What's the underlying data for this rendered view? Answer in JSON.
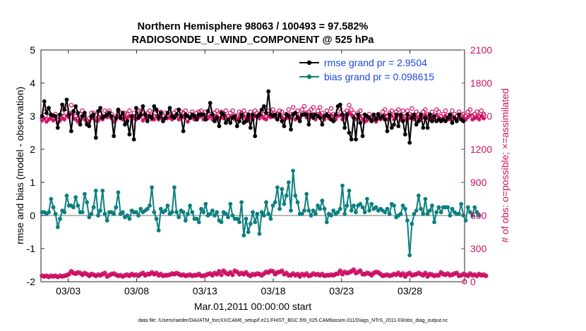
{
  "chart_data": {
    "type": "line",
    "title": "Northern Hemisphere 98063 / 100493 = 97.582%",
    "subtitle": "RADIOSONDE_U_WIND_COMPONENT @ 525 hPa",
    "xlabel": "Mar.01,2011 00:00:00 start",
    "ylabel_left": "rmse and bias (model - observation)",
    "ylabel_right": "# of obs: o=possible; ×=assimilated",
    "x_ticks": [
      "03/03",
      "03/08",
      "03/13",
      "03/18",
      "03/23",
      "03/28"
    ],
    "x_tick_days": [
      3,
      8,
      13,
      18,
      23,
      28
    ],
    "xlim_days": [
      1,
      32
    ],
    "ylim_left": [
      -2,
      5
    ],
    "ylim_right": [
      0,
      2100
    ],
    "y_ticks_left": [
      "-2",
      "-1",
      "0",
      "1",
      "2",
      "3",
      "4",
      "5"
    ],
    "y_ticks_right": [
      "0",
      "300",
      "600",
      "900",
      "1200",
      "1500",
      "1800",
      "2100"
    ],
    "colors": {
      "rmse": "#000000",
      "bias": "#0b7f7f",
      "obs": "#cc1164",
      "legend_text": "#1a46e6",
      "zero_line": "#a0a0a0"
    },
    "legend": [
      "rmse grand pr = 2.9504",
      "bias grand pr = 0.098615"
    ],
    "footnote": "data file: /Users/raeder/DAI/ATM_forcXX/CAM6_setup/f.e21.FHIST_BGC.f09_025.CAM6assim.011/Diags_NTrS_2011-03/obs_diag_output.nc",
    "rmse": [
      3.0,
      3.45,
      3.1,
      3.25,
      3.05,
      3.02,
      3.0,
      2.65,
      3.05,
      3.35,
      3.2,
      3.5,
      3.05,
      2.55,
      3.15,
      3.3,
      3.1,
      2.75,
      3.0,
      3.1,
      2.75,
      2.7,
      3.0,
      3.05,
      2.35,
      3.15,
      3.25,
      2.95,
      3.0,
      3.05,
      3.1,
      3.0,
      2.4,
      2.95,
      3.2,
      2.95,
      3.1,
      2.75,
      2.85,
      2.45,
      3.0,
      2.3,
      3.25,
      2.95,
      3.05,
      3.3,
      3.05,
      2.85,
      3.0,
      2.95,
      3.3,
      3.2,
      2.95,
      3.1,
      2.85,
      2.95,
      3.1,
      3.25,
      3.0,
      2.95,
      3.05,
      3.2,
      3.0,
      2.55,
      3.05,
      3.0,
      2.95,
      3.05,
      3.0,
      2.9,
      3.05,
      3.05,
      3.05,
      2.9,
      3.15,
      3.4,
      3.05,
      2.85,
      2.95,
      2.7,
      3.1,
      3.05,
      2.8,
      2.9,
      2.8,
      2.95,
      3.0,
      2.7,
      2.85,
      3.05,
      2.8,
      2.85,
      3.05,
      2.65,
      3.05,
      2.4,
      3.0,
      3.05,
      3.2,
      3.3,
      3.1,
      3.75,
      3.05,
      3.0,
      3.05,
      2.9,
      3.05,
      2.85,
      2.7,
      3.05,
      3.0,
      2.6,
      3.05,
      3.1,
      2.95,
      2.85,
      3.05,
      3.05,
      3.05,
      2.75,
      3.05,
      2.95,
      3.05,
      3.0,
      2.95,
      2.75,
      3.0,
      3.05,
      3.0,
      2.9,
      2.85,
      3.05,
      3.3,
      3.35,
      3.05,
      2.65,
      3.05,
      2.5,
      2.3,
      2.95,
      2.3,
      3.05,
      2.8,
      2.4,
      3.05,
      3.0,
      2.95,
      2.85,
      3.05,
      2.9,
      3.05,
      2.95,
      3.0,
      2.9,
      2.55,
      3.05,
      2.65,
      2.75,
      3.05,
      2.7,
      3.05,
      2.85,
      2.45,
      3.05,
      2.2,
      2.95,
      3.05,
      2.75,
      2.85,
      3.05,
      2.65,
      2.95,
      2.65,
      3.05,
      2.85,
      3.0,
      2.85,
      2.9,
      2.85,
      2.9,
      2.85,
      2.95,
      3.05,
      2.8,
      2.95,
      2.85,
      3.05,
      2.9,
      2.85
    ],
    "bias": [
      0.1,
      0.1,
      0.05,
      0.1,
      0.5,
      0.25,
      0.05,
      -0.35,
      -0.1,
      0.15,
      0.1,
      0.6,
      0.3,
      0.3,
      0.25,
      0.55,
      0.3,
      0.1,
      0.1,
      0.65,
      0.4,
      -0.05,
      0.05,
      0.25,
      0.75,
      0.0,
      0.15,
      0.75,
      0.05,
      -0.15,
      0.1,
      0.1,
      0.05,
      0.25,
      0.7,
      0.05,
      0.1,
      -0.05,
      0.0,
      -0.1,
      0.15,
      0.1,
      0.1,
      0.0,
      0.2,
      0.1,
      0.15,
      0.2,
      0.3,
      0.85,
      0.1,
      -0.1,
      -0.45,
      0.2,
      0.1,
      0.15,
      0.3,
      0.05,
      0.1,
      0.85,
      0.1,
      -0.05,
      0.15,
      0.1,
      -0.15,
      0.05,
      0.3,
      0.1,
      -0.1,
      -0.1,
      -0.2,
      0.2,
      0.1,
      0.35,
      0.0,
      0.05,
      0.15,
      0.0,
      0.1,
      -0.15,
      -0.2,
      0.1,
      0.05,
      -0.05,
      0.35,
      0.0,
      -0.1,
      -0.1,
      -0.2,
      0.4,
      -0.6,
      -0.1,
      -0.5,
      -0.25,
      0.1,
      -0.2,
      0.05,
      -0.55,
      0.1,
      0.0,
      0.4,
      0.05,
      -0.1,
      0.3,
      0.4,
      0.85,
      0.2,
      0.8,
      0.35,
      0.6,
      1.0,
      0.15,
      1.35,
      0.6,
      0.4,
      0.05,
      0.05,
      0.15,
      0.65,
      0.15,
      0.0,
      0.15,
      0.05,
      0.3,
      0.2,
      0.45,
      0.2,
      -0.2,
      0.05,
      0.0,
      0.15,
      0.05,
      0.1,
      0.2,
      0.9,
      0.05,
      0.3,
      0.75,
      0.15,
      0.3,
      0.1,
      0.3,
      0.35,
      0.25,
      0.1,
      0.5,
      0.15,
      0.35,
      0.2,
      0.25,
      0.15,
      0.2,
      0.15,
      0.1,
      0.2,
      0.05,
      0.35,
      0.3,
      -0.05,
      0.0,
      0.05,
      0.3,
      0.2,
      -0.15,
      -1.2,
      -0.25,
      0.05,
      0.15,
      0.6,
      0.2,
      0.05,
      0.5,
      0.05,
      0.15,
      0.3,
      -0.2,
      0.1,
      0.25,
      0.1,
      0.25,
      0.25,
      0.25,
      0.0,
      0.2,
      0.1,
      0.05,
      0.05,
      0.35,
      0.0,
      -0.15,
      0.25,
      0.1,
      0.0,
      0.25,
      0.1,
      0.0
    ],
    "obs_possible": [
      1480,
      1540,
      1470,
      1500,
      1510,
      1480,
      1520,
      1460,
      1490,
      1530,
      1500,
      1570,
      1530,
      1600,
      1540,
      1500,
      1480,
      1520,
      1550,
      1500,
      1460,
      1480,
      1530,
      1530,
      1510,
      1490,
      1520,
      1500,
      1550,
      1530,
      1550,
      1520,
      1480,
      1500,
      1550,
      1530,
      1500,
      1530,
      1520,
      1550,
      1500,
      1530,
      1500,
      1550,
      1550,
      1490,
      1520,
      1530,
      1550,
      1510,
      1500,
      1550,
      1500,
      1540,
      1500,
      1530,
      1520,
      1540,
      1500,
      1530,
      1550,
      1500,
      1540,
      1530,
      1550,
      1480,
      1520,
      1540,
      1500,
      1530,
      1540,
      1550,
      1500,
      1540,
      1520,
      1550,
      1500,
      1530,
      1550,
      1510,
      1540,
      1520,
      1550,
      1500,
      1530,
      1550,
      1510,
      1500,
      1540,
      1530,
      1550,
      1520,
      1490,
      1540,
      1500,
      1550,
      1530,
      1520,
      1550,
      1520,
      1500,
      1550,
      1540,
      1560,
      1530,
      1520,
      1550,
      1540,
      1500,
      1520,
      1560,
      1520,
      1580,
      1500,
      1550,
      1520,
      1560,
      1590,
      1530,
      1540,
      1560,
      1580,
      1500,
      1550,
      1580,
      1530,
      1500,
      1550,
      1520,
      1570,
      1520,
      1500,
      1550,
      1570,
      1500,
      1530,
      1550,
      1600,
      1560,
      1530,
      1500,
      1530,
      1550,
      1500,
      1480,
      1490,
      1520,
      1490,
      1500,
      1480,
      1520,
      1500,
      1540,
      1560,
      1500,
      1530,
      1550,
      1510,
      1540,
      1560,
      1500,
      1550,
      1500,
      1550,
      1520,
      1570,
      1500,
      1540,
      1520,
      1510,
      1540,
      1560,
      1520,
      1500,
      1540,
      1510,
      1560,
      1540,
      1500,
      1520,
      1550,
      1510,
      1500,
      1550,
      1520,
      1500,
      1540,
      1510,
      1520,
      1500,
      1540,
      1560,
      1500,
      1520,
      1540,
      1500,
      1550,
      1520
    ],
    "obs_assimilated": [
      1460,
      1480,
      1450,
      1470,
      1480,
      1460,
      1480,
      1440,
      1460,
      1480,
      1470,
      1500,
      1490,
      1520,
      1480,
      1470,
      1450,
      1470,
      1500,
      1470,
      1440,
      1450,
      1480,
      1480,
      1460,
      1460,
      1480,
      1470,
      1500,
      1490,
      1500,
      1480,
      1450,
      1470,
      1500,
      1480,
      1470,
      1490,
      1480,
      1500,
      1470,
      1490,
      1470,
      1500,
      1500,
      1460,
      1480,
      1490,
      1500,
      1470,
      1470,
      1500,
      1470,
      1490,
      1470,
      1480,
      1480,
      1490,
      1470,
      1490,
      1500,
      1470,
      1490,
      1490,
      1500,
      1450,
      1480,
      1490,
      1470,
      1490,
      1490,
      1500,
      1470,
      1490,
      1480,
      1500,
      1470,
      1490,
      1500,
      1470,
      1490,
      1480,
      1500,
      1470,
      1490,
      1500,
      1470,
      1470,
      1490,
      1490,
      1500,
      1480,
      1460,
      1490,
      1470,
      1500,
      1490,
      1480,
      1500,
      1480,
      1470,
      1500,
      1490,
      1510,
      1490,
      1480,
      1500,
      1490,
      1470,
      1480,
      1510,
      1480,
      1520,
      1470,
      1500,
      1480,
      1510,
      1530,
      1490,
      1490,
      1510,
      1520,
      1470,
      1500,
      1520,
      1490,
      1470,
      1500,
      1480,
      1510,
      1480,
      1470,
      1500,
      1510,
      1470,
      1490,
      1500,
      1530,
      1510,
      1490,
      1470,
      1490,
      1500,
      1470,
      1450,
      1460,
      1480,
      1460,
      1470,
      1450,
      1480,
      1470,
      1490,
      1510,
      1470,
      1490,
      1500,
      1470,
      1490,
      1510,
      1470,
      1500,
      1470,
      1500,
      1480,
      1510,
      1470,
      1490,
      1480,
      1470,
      1490,
      1510,
      1480,
      1470,
      1490,
      1470,
      1510,
      1490,
      1470,
      1480,
      1500,
      1470,
      1470,
      1500,
      1480,
      1470,
      1490,
      1470,
      1480,
      1470,
      1490,
      1510,
      1470,
      1480,
      1490,
      1470,
      1500,
      1480
    ],
    "obs_low_possible": [
      55,
      50,
      55,
      45,
      55,
      50,
      55,
      45,
      55,
      50,
      55,
      60,
      70,
      95,
      80,
      75,
      85,
      80,
      65,
      80,
      70,
      55,
      70,
      65,
      55,
      65,
      60,
      70,
      80,
      50,
      60,
      70,
      75,
      65,
      55,
      60,
      50,
      60,
      65,
      55,
      70,
      60,
      65,
      55,
      70,
      80,
      60,
      70,
      70,
      85,
      70,
      80,
      60,
      70,
      55,
      60,
      60,
      65,
      75,
      70,
      80,
      70,
      60,
      65,
      55,
      60,
      65,
      55,
      60,
      60,
      70,
      55,
      55,
      60,
      70,
      75,
      60,
      80,
      70,
      95,
      65,
      100,
      80,
      70,
      85,
      65,
      100,
      90,
      70,
      80,
      70,
      85,
      65,
      55,
      70,
      65,
      75,
      70,
      60,
      75,
      90,
      85,
      100,
      95,
      70,
      85,
      90,
      100,
      70,
      80,
      60,
      60,
      75,
      60,
      70,
      50,
      70,
      60,
      75,
      55,
      60,
      75,
      65,
      70,
      60,
      70,
      55,
      60,
      60,
      65,
      60,
      70,
      75,
      100,
      70,
      90,
      80,
      85,
      95,
      110,
      80,
      90,
      100,
      70,
      70,
      80,
      75,
      60,
      80,
      90,
      85,
      70,
      55,
      60,
      65,
      55,
      60,
      70,
      65,
      80,
      60,
      75,
      50,
      70,
      80,
      60,
      65,
      70,
      80,
      70,
      60,
      80,
      50,
      70,
      65,
      55,
      60,
      60,
      85,
      70,
      65,
      75,
      60,
      65,
      75,
      80,
      55,
      60,
      70,
      65,
      55,
      75,
      60,
      65,
      55,
      70,
      60,
      65,
      55
    ],
    "obs_low_assimilated": [
      50,
      45,
      50,
      40,
      50,
      45,
      50,
      40,
      50,
      45,
      50,
      55,
      65,
      90,
      75,
      70,
      80,
      75,
      60,
      75,
      65,
      50,
      65,
      60,
      50,
      60,
      55,
      65,
      75,
      45,
      55,
      65,
      70,
      60,
      50,
      55,
      45,
      55,
      60,
      50,
      65,
      55,
      60,
      50,
      65,
      75,
      55,
      65,
      65,
      80,
      65,
      75,
      55,
      65,
      50,
      55,
      55,
      60,
      70,
      65,
      75,
      65,
      55,
      60,
      50,
      55,
      60,
      50,
      55,
      55,
      65,
      50,
      50,
      55,
      65,
      70,
      55,
      75,
      65,
      90,
      60,
      95,
      75,
      65,
      80,
      60,
      95,
      85,
      65,
      75,
      65,
      80,
      60,
      50,
      65,
      60,
      70,
      65,
      55,
      70,
      85,
      80,
      95,
      90,
      65,
      80,
      85,
      95,
      65,
      75,
      55,
      55,
      70,
      55,
      65,
      45,
      65,
      55,
      70,
      50,
      55,
      70,
      60,
      65,
      55,
      65,
      50,
      55,
      55,
      60,
      55,
      65,
      70,
      95,
      65,
      85,
      75,
      80,
      90,
      105,
      75,
      85,
      95,
      65,
      65,
      75,
      70,
      55,
      75,
      85,
      80,
      65,
      50,
      55,
      60,
      50,
      55,
      65,
      60,
      75,
      55,
      70,
      45,
      65,
      75,
      55,
      60,
      65,
      75,
      65,
      55,
      75,
      45,
      65,
      60,
      50,
      55,
      55,
      80,
      65,
      60,
      70,
      55,
      60,
      70,
      75,
      50,
      55,
      65,
      60,
      50,
      70,
      55,
      60,
      50,
      65,
      55,
      60,
      50
    ]
  }
}
